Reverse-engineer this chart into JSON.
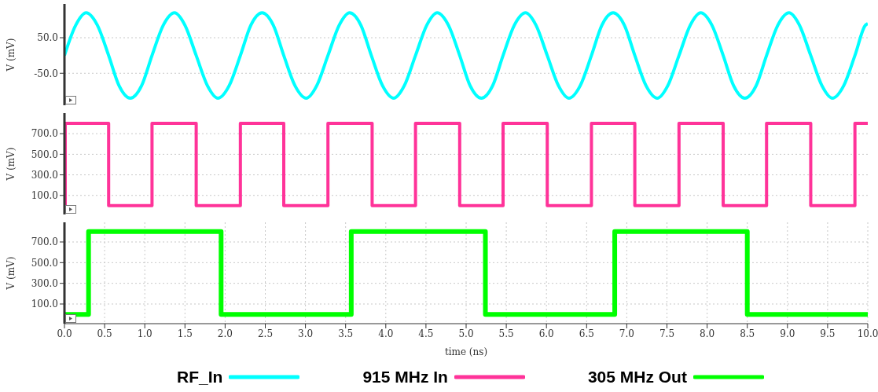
{
  "chart_data": [
    {
      "type": "line",
      "ylabel": "V (mV)",
      "xlim": [
        0,
        10
      ],
      "xticks": [
        {
          "value": 0,
          "label": null
        },
        {
          "value": 0.5,
          "label": null
        },
        {
          "value": 1,
          "label": null
        },
        {
          "value": 1.5,
          "label": null
        },
        {
          "value": 2,
          "label": null
        },
        {
          "value": 2.5,
          "label": null
        },
        {
          "value": 3,
          "label": null
        },
        {
          "value": 3.5,
          "label": null
        },
        {
          "value": 4,
          "label": null
        },
        {
          "value": 4.5,
          "label": null
        },
        {
          "value": 5,
          "label": null
        },
        {
          "value": 5.5,
          "label": null
        },
        {
          "value": 6,
          "label": null
        },
        {
          "value": 6.5,
          "label": null
        },
        {
          "value": 7,
          "label": null
        },
        {
          "value": 7.5,
          "label": null
        },
        {
          "value": 8,
          "label": null
        },
        {
          "value": 8.5,
          "label": null
        },
        {
          "value": 9,
          "label": null
        },
        {
          "value": 9.5,
          "label": null
        },
        {
          "value": 10,
          "label": null
        }
      ],
      "ylim": [
        -140,
        145
      ],
      "yticks": [
        {
          "value": -50,
          "label": "-50.0"
        },
        {
          "value": 50,
          "label": "50.0"
        }
      ],
      "grid": true,
      "tick_labels": "y",
      "legend": "bottom",
      "marker": "none",
      "line_style": "solid",
      "series": [
        {
          "name": "RF_In",
          "color": "#00ffff",
          "x": [
            0,
            0.14,
            0.27,
            0.41,
            0.55,
            0.68,
            0.82,
            0.96,
            1.09,
            1.23,
            1.37,
            1.5,
            1.64,
            1.78,
            1.91,
            2.05,
            2.19,
            2.32,
            2.46,
            2.6,
            2.73,
            2.87,
            3.01,
            3.14,
            3.28,
            3.42,
            3.55,
            3.69,
            3.82,
            3.96,
            4.1,
            4.23,
            4.37,
            4.51,
            4.64,
            4.78,
            4.92,
            5.05,
            5.19,
            5.33,
            5.46,
            5.6,
            5.74,
            5.87,
            6.01,
            6.15,
            6.28,
            6.42,
            6.56,
            6.69,
            6.83,
            6.97,
            7.1,
            7.24,
            7.38,
            7.51,
            7.65,
            7.79,
            7.92,
            8.06,
            8.2,
            8.33,
            8.47,
            8.61,
            8.74,
            8.88,
            9.02,
            9.15,
            9.29,
            9.43,
            9.56,
            9.7,
            9.84,
            9.97,
            10
          ],
          "values": [
            0,
            85,
            120,
            85,
            0,
            -85,
            -120,
            -85,
            0,
            85,
            120,
            85,
            0,
            -85,
            -120,
            -85,
            0,
            85,
            120,
            85,
            0,
            -85,
            -120,
            -85,
            0,
            85,
            120,
            85,
            0,
            -85,
            -120,
            -85,
            0,
            85,
            120,
            85,
            0,
            -85,
            -120,
            -85,
            0,
            85,
            120,
            85,
            0,
            -85,
            -120,
            -85,
            0,
            85,
            120,
            85,
            0,
            -85,
            -120,
            -85,
            0,
            85,
            120,
            85,
            0,
            -85,
            -120,
            -85,
            0,
            85,
            120,
            85,
            0,
            -85,
            -120,
            -85,
            0,
            85,
            90
          ]
        }
      ]
    },
    {
      "type": "step",
      "ylabel": "V (mV)",
      "xlim": [
        0,
        10
      ],
      "xticks": [
        {
          "value": 0,
          "label": null
        },
        {
          "value": 0.5,
          "label": null
        },
        {
          "value": 1,
          "label": null
        },
        {
          "value": 1.5,
          "label": null
        },
        {
          "value": 2,
          "label": null
        },
        {
          "value": 2.5,
          "label": null
        },
        {
          "value": 3,
          "label": null
        },
        {
          "value": 3.5,
          "label": null
        },
        {
          "value": 4,
          "label": null
        },
        {
          "value": 4.5,
          "label": null
        },
        {
          "value": 5,
          "label": null
        },
        {
          "value": 5.5,
          "label": null
        },
        {
          "value": 6,
          "label": null
        },
        {
          "value": 6.5,
          "label": null
        },
        {
          "value": 7,
          "label": null
        },
        {
          "value": 7.5,
          "label": null
        },
        {
          "value": 8,
          "label": null
        },
        {
          "value": 8.5,
          "label": null
        },
        {
          "value": 9,
          "label": null
        },
        {
          "value": 9.5,
          "label": null
        },
        {
          "value": 10,
          "label": null
        }
      ],
      "ylim": [
        -85,
        900
      ],
      "yticks": [
        {
          "value": 100,
          "label": "100.0"
        },
        {
          "value": 300,
          "label": "300.0"
        },
        {
          "value": 500,
          "label": "500.0"
        },
        {
          "value": 700,
          "label": "700.0"
        }
      ],
      "grid": true,
      "tick_labels": "y",
      "legend": "bottom",
      "marker": "none",
      "line_style": "solid",
      "series": [
        {
          "name": "915 MHz In",
          "color": "#ff3399",
          "x": [
            0,
            0.01,
            0.55,
            1.09,
            1.64,
            2.19,
            2.73,
            3.28,
            3.83,
            4.37,
            4.92,
            5.46,
            6.01,
            6.56,
            7.1,
            7.65,
            8.2,
            8.74,
            9.29,
            9.84,
            10
          ],
          "values": [
            0,
            800,
            0,
            800,
            0,
            800,
            0,
            800,
            0,
            800,
            0,
            800,
            0,
            800,
            0,
            800,
            0,
            800,
            0,
            800,
            800
          ]
        }
      ]
    },
    {
      "type": "step",
      "xlabel": "time (ns)",
      "ylabel": "V (mV)",
      "xlim": [
        0,
        10
      ],
      "xticks": [
        {
          "value": 0,
          "label": "0.0"
        },
        {
          "value": 0.5,
          "label": "0.5"
        },
        {
          "value": 1,
          "label": "1.0"
        },
        {
          "value": 1.5,
          "label": "1.5"
        },
        {
          "value": 2,
          "label": "2.0"
        },
        {
          "value": 2.5,
          "label": "2.5"
        },
        {
          "value": 3,
          "label": "3.0"
        },
        {
          "value": 3.5,
          "label": "3.5"
        },
        {
          "value": 4,
          "label": "4.0"
        },
        {
          "value": 4.5,
          "label": "4.5"
        },
        {
          "value": 5,
          "label": "5.0"
        },
        {
          "value": 5.5,
          "label": "5.5"
        },
        {
          "value": 6,
          "label": "6.0"
        },
        {
          "value": 6.5,
          "label": "6.5"
        },
        {
          "value": 7,
          "label": "7.0"
        },
        {
          "value": 7.5,
          "label": "7.5"
        },
        {
          "value": 8,
          "label": "8.0"
        },
        {
          "value": 8.5,
          "label": "8.5"
        },
        {
          "value": 9,
          "label": "9.0"
        },
        {
          "value": 9.5,
          "label": "9.5"
        },
        {
          "value": 10,
          "label": "10.0"
        }
      ],
      "ylim": [
        -90,
        890
      ],
      "yticks": [
        {
          "value": 100,
          "label": "100.0"
        },
        {
          "value": 300,
          "label": "300.0"
        },
        {
          "value": 500,
          "label": "500.0"
        },
        {
          "value": 700,
          "label": "700.0"
        }
      ],
      "grid": true,
      "legend": "bottom",
      "marker": "none",
      "line_style": "solid",
      "series": [
        {
          "name": "305 MHz Out",
          "color": "#00ff00",
          "x": [
            0,
            0.3,
            1.95,
            3.57,
            5.24,
            6.85,
            8.5,
            10
          ],
          "values": [
            0,
            800,
            0,
            800,
            0,
            800,
            0,
            0
          ]
        }
      ]
    }
  ]
}
